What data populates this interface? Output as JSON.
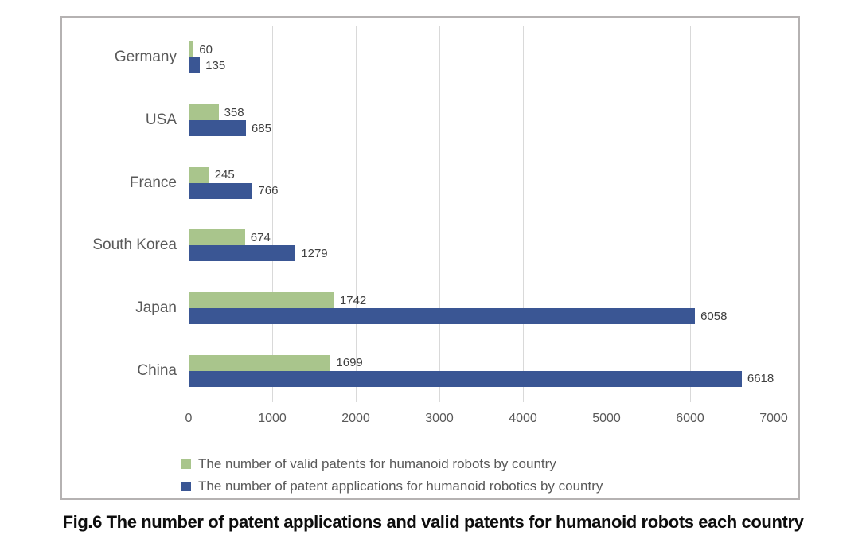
{
  "figure": {
    "caption": "Fig.6 The number of patent applications and valid patents for humanoid robots each country"
  },
  "chart_data": {
    "type": "bar",
    "orientation": "horizontal",
    "title": "",
    "categories": [
      "Germany",
      "USA",
      "France",
      "South Korea",
      "Japan",
      "China"
    ],
    "series": [
      {
        "name": "The number of valid patents for humanoid robots by country",
        "color": "#a9c58c",
        "values": [
          60,
          358,
          245,
          674,
          1742,
          1699
        ]
      },
      {
        "name": "The number of patent applications for humanoid robotics by country",
        "color": "#3a5694",
        "values": [
          135,
          685,
          766,
          1279,
          6058,
          6618
        ]
      }
    ],
    "xlim": [
      0,
      7000
    ],
    "x_ticks": [
      0,
      1000,
      2000,
      3000,
      4000,
      5000,
      6000,
      7000
    ],
    "grid": "vertical-gridlines",
    "legend_position": "bottom-left",
    "data_labels": true,
    "styles": {
      "gridline_color": "#d9d9d9",
      "frame_border_color": "#b5b2b2",
      "tick_label_color": "#595959",
      "category_label_color": "#595959",
      "value_label_color": "#3f3f3f",
      "legend_text_color": "#595959",
      "background": "#ffffff"
    }
  }
}
